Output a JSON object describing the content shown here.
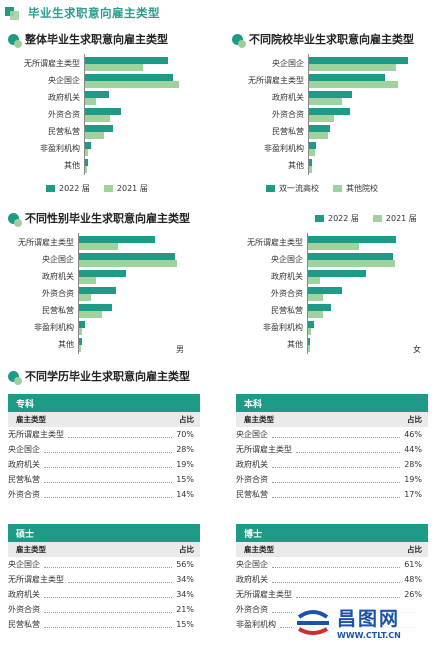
{
  "page": {
    "title": "毕业生求职意向雇主类型"
  },
  "legend_year": {
    "y2022": "2022 届",
    "y2021": "2021 届"
  },
  "legend_school": {
    "a": "双一流高校",
    "b": "其他院校"
  },
  "chart_data": [
    {
      "type": "bar",
      "title": "整体毕业生求职意向雇主类型",
      "categories": [
        "无所谓雇主类型",
        "央企国企",
        "政府机关",
        "外资合资",
        "民营私营",
        "非盈利机构",
        "其他"
      ],
      "series": [
        {
          "name": "2022 届",
          "values": [
            66,
            70,
            19,
            29,
            22,
            5,
            2
          ]
        },
        {
          "name": "2021 届",
          "values": [
            46,
            75,
            9,
            20,
            15,
            2,
            1
          ]
        }
      ],
      "colors": [
        "#1f9a86",
        "#9fd29c"
      ],
      "legend": "bottom"
    },
    {
      "type": "bar",
      "title": "不同院校毕业生求职意向雇主类型",
      "categories": [
        "央企国企",
        "无所谓雇主类型",
        "政府机关",
        "外资合资",
        "民营私营",
        "非盈利机构",
        "其他"
      ],
      "series": [
        {
          "name": "双一流高校",
          "values": [
            72,
            55,
            31,
            30,
            15,
            5,
            2
          ]
        },
        {
          "name": "其他院校",
          "values": [
            63,
            65,
            24,
            18,
            14,
            4,
            2
          ]
        }
      ],
      "colors": [
        "#1f9a86",
        "#9fd29c"
      ],
      "legend": "bottom"
    },
    {
      "type": "bar",
      "title": "不同性别毕业生求职意向雇主类型",
      "panel_tag": "男",
      "categories": [
        "无所谓雇主类型",
        "央企国企",
        "政府机关",
        "外资合资",
        "民营私营",
        "非盈利机构",
        "其他"
      ],
      "series": [
        {
          "name": "2022 届",
          "values": [
            55,
            70,
            34,
            27,
            24,
            4,
            2
          ]
        },
        {
          "name": "2021 届",
          "values": [
            28,
            71,
            12,
            9,
            17,
            2,
            1
          ]
        }
      ],
      "colors": [
        "#1f9a86",
        "#9fd29c"
      ],
      "legend": "top-right"
    },
    {
      "type": "bar",
      "title": "",
      "panel_tag": "女",
      "categories": [
        "无所谓雇主类型",
        "央企国企",
        "政府机关",
        "外资合资",
        "民营私营",
        "非盈利机构",
        "其他"
      ],
      "series": [
        {
          "name": "2022 届",
          "values": [
            64,
            62,
            42,
            25,
            17,
            4,
            1
          ]
        },
        {
          "name": "2021 届",
          "values": [
            37,
            63,
            9,
            11,
            11,
            2,
            1
          ]
        }
      ],
      "colors": [
        "#1f9a86",
        "#9fd29c"
      ],
      "legend": "top-right"
    },
    {
      "type": "table",
      "title": "不同学历毕业生求职意向雇主类型",
      "tables": [
        {
          "name": "专科",
          "col_a": "雇主类型",
          "col_b": "占比",
          "rows": [
            [
              "无所谓雇主类型",
              "70%"
            ],
            [
              "央企国企",
              "28%"
            ],
            [
              "政府机关",
              "19%"
            ],
            [
              "民营私营",
              "15%"
            ],
            [
              "外资合资",
              "14%"
            ]
          ]
        },
        {
          "name": "本科",
          "col_a": "雇主类型",
          "col_b": "占比",
          "rows": [
            [
              "央企国企",
              "46%"
            ],
            [
              "无所谓雇主类型",
              "44%"
            ],
            [
              "政府机关",
              "28%"
            ],
            [
              "外资合资",
              "19%"
            ],
            [
              "民营私营",
              "17%"
            ]
          ]
        },
        {
          "name": "硕士",
          "col_a": "雇主类型",
          "col_b": "占比",
          "rows": [
            [
              "央企国企",
              "56%"
            ],
            [
              "无所谓雇主类型",
              "34%"
            ],
            [
              "政府机关",
              "34%"
            ],
            [
              "外资合资",
              "21%"
            ],
            [
              "民营私营",
              "15%"
            ]
          ]
        },
        {
          "name": "博士",
          "col_a": "雇主类型",
          "col_b": "占比",
          "rows": [
            [
              "央企国企",
              "61%"
            ],
            [
              "政府机关",
              "48%"
            ],
            [
              "无所谓雇主类型",
              "26%"
            ],
            [
              "外资合资",
              "",
              ""
            ],
            [
              "非盈利机构",
              ""
            ]
          ]
        }
      ]
    }
  ],
  "watermark": {
    "text": "昌图网",
    "url": "WWW.CTLT.CN"
  }
}
